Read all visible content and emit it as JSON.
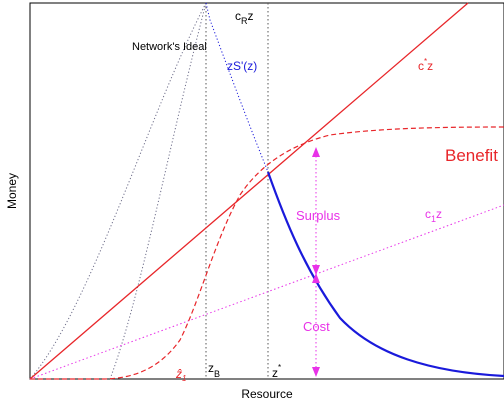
{
  "axes": {
    "xlabel": "Resource",
    "ylabel": "Money"
  },
  "annotations": {
    "network_ideal": "Network's Ideal",
    "cr_z_base": "c",
    "cr_z_sub": "R",
    "cr_z_tail": "z",
    "zSprime": "zS'(z)",
    "cstar_base": "c",
    "cstar_sup": "*",
    "cstar_tail": "z",
    "benefit": "Benefit",
    "surplus": "Surplus",
    "cost": "Cost",
    "c1z_base": "c",
    "c1z_sub": "1",
    "c1z_tail": "z",
    "zhat_base": "ẑ",
    "zhat_sub": "1",
    "zB_base": "z",
    "zB_sub": "B",
    "zstar_base": "z",
    "zstar_sup": "*"
  },
  "colors": {
    "red": "#e8262a",
    "blue": "#1a1adb",
    "magenta": "#e832e8",
    "gray_dotted": "#6e6e8a",
    "axis": "#000000"
  }
}
